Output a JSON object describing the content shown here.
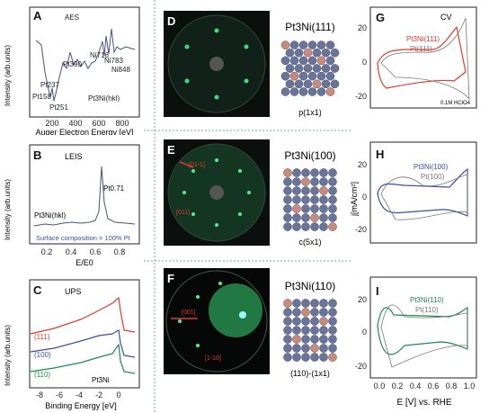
{
  "panels": {
    "A": {
      "letter": "A",
      "title": "AES",
      "sample": "Pt3Ni(hkl)",
      "ylabel": "Intensity (arb.units)",
      "xlabel": "Auger Electron Energy [eV]",
      "xticks": [
        "200",
        "400",
        "600",
        "800"
      ],
      "peaks": [
        "Pt158",
        "Pt237",
        "Pt251",
        "Pt390",
        "Ni716",
        "Ni783",
        "Ni848"
      ]
    },
    "B": {
      "letter": "B",
      "title": "LEIS",
      "sample": "Pt3Ni(hkl)",
      "peak": "Pt0.71",
      "ylabel": "Intensity (arb.units)",
      "xlabel": "E/E0",
      "xticks": [
        "0.2",
        "0.4",
        "0.6",
        "0.8"
      ],
      "note": "Surface composition = 100% Pt"
    },
    "C": {
      "letter": "C",
      "title": "UPS",
      "ylabel": "Intensity (arb.units)",
      "xlabel": "Binding Energy [eV]",
      "xticks": [
        "-8",
        "-6",
        "-4",
        "-2",
        "0"
      ],
      "curves": [
        {
          "name": "(111)",
          "color": "#e03a2c"
        },
        {
          "name": "(100)",
          "color": "#3b4ea8"
        },
        {
          "name": "(110)",
          "color": "#1f8a4c"
        }
      ],
      "ref": "Pt3Ni"
    },
    "D": {
      "letter": "D",
      "surface": "Pt3Ni(111)",
      "recon": "p(1x1)"
    },
    "E": {
      "letter": "E",
      "surface": "Pt3Ni(100)",
      "recon": "c(5x1)",
      "dir1": "[01-1]",
      "dir2": "[011]"
    },
    "F": {
      "letter": "F",
      "surface": "Pt3Ni(110)",
      "recon": "(110)-(1x1)",
      "dir1": "[001]",
      "dir2": "[1-10]"
    },
    "G": {
      "letter": "G",
      "title": "CV",
      "leg1": "Pt3Ni(111)",
      "leg2": "Pt(111)",
      "note": "0.1M HClO4",
      "color": "#e03a2c",
      "yticks": [
        "20",
        "0",
        "-20"
      ]
    },
    "H": {
      "letter": "H",
      "leg1": "Pt3Ni(100)",
      "leg2": "Pt(100)",
      "color": "#3b4ea8",
      "ylabel": "j[mA/cm²]",
      "yticks": [
        "20",
        "0",
        "-20"
      ]
    },
    "I": {
      "letter": "I",
      "leg1": "Pt3Ni(110)",
      "leg2": "Pt(110)",
      "color": "#1f8a4c",
      "xlabel": "E [V] vs. RHE",
      "yticks": [
        "20",
        "0",
        "-20"
      ],
      "xticks": [
        "0.0",
        "0.2",
        "0.4",
        "0.6",
        "0.8",
        "1.0"
      ]
    }
  }
}
